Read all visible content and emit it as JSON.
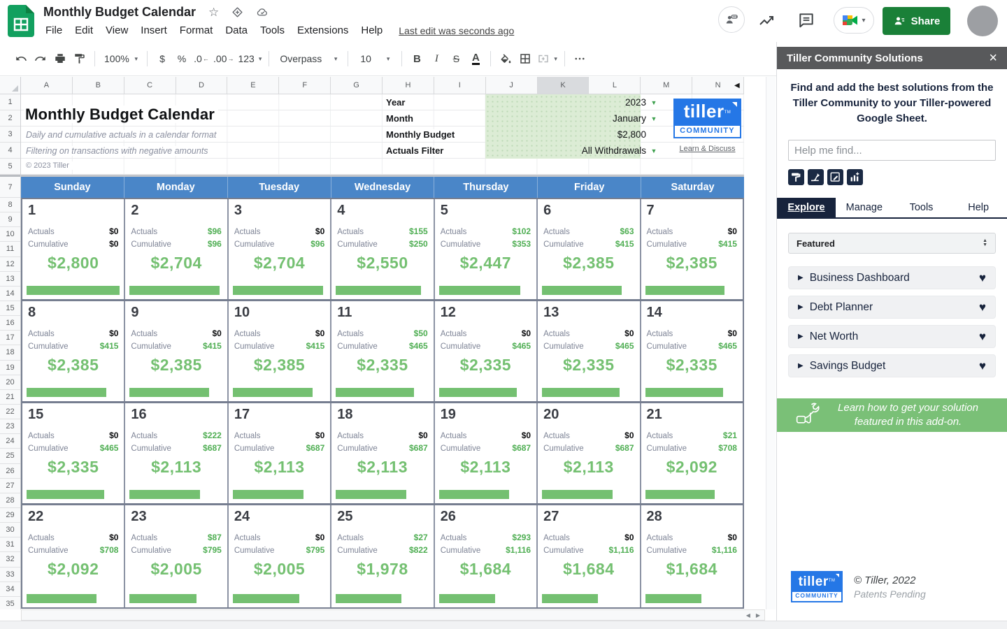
{
  "topbar": {
    "doc_title": "Monthly Budget Calendar",
    "menu": [
      "File",
      "Edit",
      "View",
      "Insert",
      "Format",
      "Data",
      "Tools",
      "Extensions",
      "Help"
    ],
    "last_edit": "Last edit was seconds ago",
    "share_label": "Share"
  },
  "toolbar": {
    "zoom": "100%",
    "currency": "$",
    "percent": "%",
    "decrease_decimal": ".0",
    "increase_decimal": ".00",
    "more_formats": "123",
    "font": "Overpass",
    "font_size": "10",
    "bold": "B",
    "italic": "I",
    "strikethrough": "S",
    "text_color": "A"
  },
  "grid": {
    "columns": [
      "A",
      "B",
      "C",
      "D",
      "E",
      "F",
      "G",
      "H",
      "I",
      "J",
      "K",
      "L",
      "M",
      "N"
    ],
    "selected_column": "K",
    "rows": [
      "1",
      "2",
      "3",
      "4",
      "5",
      "7",
      "8",
      "9",
      "10",
      "11",
      "12",
      "13",
      "14",
      "15",
      "16",
      "17",
      "18",
      "19",
      "20",
      "21",
      "22",
      "23",
      "24",
      "25",
      "26",
      "27",
      "28",
      "29",
      "30",
      "31",
      "32",
      "33",
      "34",
      "35"
    ]
  },
  "sheet": {
    "title": "Monthly Budget Calendar",
    "subtitle1": "Daily and cumulative actuals in a calendar format",
    "subtitle2": "Filtering on transactions with negative amounts",
    "copyright": "© 2023 Tiller",
    "fields": [
      {
        "label": "Year",
        "value": "2023",
        "dropdown": true
      },
      {
        "label": "Month",
        "value": "January",
        "dropdown": true
      },
      {
        "label": "Monthly Budget",
        "value": "$2,800",
        "dropdown": false
      },
      {
        "label": "Actuals Filter",
        "value": "All Withdrawals",
        "dropdown": true
      }
    ],
    "logo": {
      "brand": "tiller",
      "band": "COMMUNITY",
      "link": "Learn & Discuss"
    }
  },
  "calendar": {
    "weekdays": [
      "Sunday",
      "Monday",
      "Tuesday",
      "Wednesday",
      "Thursday",
      "Friday",
      "Saturday"
    ],
    "actuals_label": "Actuals",
    "cumulative_label": "Cumulative",
    "weeks": [
      [
        {
          "day": "1",
          "actuals": "$0",
          "actuals_zero": true,
          "cumulative": "$0",
          "cumulative_zero": true,
          "remaining": "$2,800",
          "bar_pct": 100
        },
        {
          "day": "2",
          "actuals": "$96",
          "actuals_zero": false,
          "cumulative": "$96",
          "cumulative_zero": false,
          "remaining": "$2,704",
          "bar_pct": 96.6
        },
        {
          "day": "3",
          "actuals": "$0",
          "actuals_zero": true,
          "cumulative": "$96",
          "cumulative_zero": false,
          "remaining": "$2,704",
          "bar_pct": 96.6
        },
        {
          "day": "4",
          "actuals": "$155",
          "actuals_zero": false,
          "cumulative": "$250",
          "cumulative_zero": false,
          "remaining": "$2,550",
          "bar_pct": 91.1
        },
        {
          "day": "5",
          "actuals": "$102",
          "actuals_zero": false,
          "cumulative": "$353",
          "cumulative_zero": false,
          "remaining": "$2,447",
          "bar_pct": 87.4
        },
        {
          "day": "6",
          "actuals": "$63",
          "actuals_zero": false,
          "cumulative": "$415",
          "cumulative_zero": false,
          "remaining": "$2,385",
          "bar_pct": 85.2
        },
        {
          "day": "7",
          "actuals": "$0",
          "actuals_zero": true,
          "cumulative": "$415",
          "cumulative_zero": false,
          "remaining": "$2,385",
          "bar_pct": 85.2
        }
      ],
      [
        {
          "day": "8",
          "actuals": "$0",
          "actuals_zero": true,
          "cumulative": "$415",
          "cumulative_zero": false,
          "remaining": "$2,385",
          "bar_pct": 85.2
        },
        {
          "day": "9",
          "actuals": "$0",
          "actuals_zero": true,
          "cumulative": "$415",
          "cumulative_zero": false,
          "remaining": "$2,385",
          "bar_pct": 85.2
        },
        {
          "day": "10",
          "actuals": "$0",
          "actuals_zero": true,
          "cumulative": "$415",
          "cumulative_zero": false,
          "remaining": "$2,385",
          "bar_pct": 85.2
        },
        {
          "day": "11",
          "actuals": "$50",
          "actuals_zero": false,
          "cumulative": "$465",
          "cumulative_zero": false,
          "remaining": "$2,335",
          "bar_pct": 83.4
        },
        {
          "day": "12",
          "actuals": "$0",
          "actuals_zero": true,
          "cumulative": "$465",
          "cumulative_zero": false,
          "remaining": "$2,335",
          "bar_pct": 83.4
        },
        {
          "day": "13",
          "actuals": "$0",
          "actuals_zero": true,
          "cumulative": "$465",
          "cumulative_zero": false,
          "remaining": "$2,335",
          "bar_pct": 83.4
        },
        {
          "day": "14",
          "actuals": "$0",
          "actuals_zero": true,
          "cumulative": "$465",
          "cumulative_zero": false,
          "remaining": "$2,335",
          "bar_pct": 83.4
        }
      ],
      [
        {
          "day": "15",
          "actuals": "$0",
          "actuals_zero": true,
          "cumulative": "$465",
          "cumulative_zero": false,
          "remaining": "$2,335",
          "bar_pct": 83.4
        },
        {
          "day": "16",
          "actuals": "$222",
          "actuals_zero": false,
          "cumulative": "$687",
          "cumulative_zero": false,
          "remaining": "$2,113",
          "bar_pct": 75.5
        },
        {
          "day": "17",
          "actuals": "$0",
          "actuals_zero": true,
          "cumulative": "$687",
          "cumulative_zero": false,
          "remaining": "$2,113",
          "bar_pct": 75.5
        },
        {
          "day": "18",
          "actuals": "$0",
          "actuals_zero": true,
          "cumulative": "$687",
          "cumulative_zero": false,
          "remaining": "$2,113",
          "bar_pct": 75.5
        },
        {
          "day": "19",
          "actuals": "$0",
          "actuals_zero": true,
          "cumulative": "$687",
          "cumulative_zero": false,
          "remaining": "$2,113",
          "bar_pct": 75.5
        },
        {
          "day": "20",
          "actuals": "$0",
          "actuals_zero": true,
          "cumulative": "$687",
          "cumulative_zero": false,
          "remaining": "$2,113",
          "bar_pct": 75.5
        },
        {
          "day": "21",
          "actuals": "$21",
          "actuals_zero": false,
          "cumulative": "$708",
          "cumulative_zero": false,
          "remaining": "$2,092",
          "bar_pct": 74.7
        }
      ],
      [
        {
          "day": "22",
          "actuals": "$0",
          "actuals_zero": true,
          "cumulative": "$708",
          "cumulative_zero": false,
          "remaining": "$2,092",
          "bar_pct": 74.7
        },
        {
          "day": "23",
          "actuals": "$87",
          "actuals_zero": false,
          "cumulative": "$795",
          "cumulative_zero": false,
          "remaining": "$2,005",
          "bar_pct": 71.6
        },
        {
          "day": "24",
          "actuals": "$0",
          "actuals_zero": true,
          "cumulative": "$795",
          "cumulative_zero": false,
          "remaining": "$2,005",
          "bar_pct": 71.6
        },
        {
          "day": "25",
          "actuals": "$27",
          "actuals_zero": false,
          "cumulative": "$822",
          "cumulative_zero": false,
          "remaining": "$1,978",
          "bar_pct": 70.6
        },
        {
          "day": "26",
          "actuals": "$293",
          "actuals_zero": false,
          "cumulative": "$1,116",
          "cumulative_zero": false,
          "remaining": "$1,684",
          "bar_pct": 60.1
        },
        {
          "day": "27",
          "actuals": "$0",
          "actuals_zero": true,
          "cumulative": "$1,116",
          "cumulative_zero": false,
          "remaining": "$1,684",
          "bar_pct": 60.1
        },
        {
          "day": "28",
          "actuals": "$0",
          "actuals_zero": true,
          "cumulative": "$1,116",
          "cumulative_zero": false,
          "remaining": "$1,684",
          "bar_pct": 60.1
        }
      ]
    ]
  },
  "sidebar": {
    "header": "Tiller Community Solutions",
    "intro": "Find and add the best solutions from the Tiller Community to your Tiller-powered Google Sheet.",
    "search_placeholder": "Help me find...",
    "icon_buttons": [
      "paint-roller",
      "split-arrow",
      "edit-box",
      "chart-add"
    ],
    "tabs": [
      "Explore",
      "Manage",
      "Tools",
      "Help"
    ],
    "active_tab": "Explore",
    "filter": "Featured",
    "solutions": [
      "Business Dashboard",
      "Debt Planner",
      "Net Worth",
      "Savings Budget"
    ],
    "banner": "Learn how to get your solution featured in this add-on.",
    "footer": {
      "brand": "tiller",
      "band": "COMMUNITY",
      "copyright": "© Tiller, 2022",
      "patents": "Patents Pending"
    }
  },
  "colors": {
    "accent_green": "#74c071",
    "weekday_blue": "#4a86c8",
    "tiller_blue": "#2577e6",
    "share_green": "#1a8038",
    "banner_green": "#7ac077",
    "sidebar_navy": "#17233c",
    "field_bg_green": "#dcecd5"
  }
}
